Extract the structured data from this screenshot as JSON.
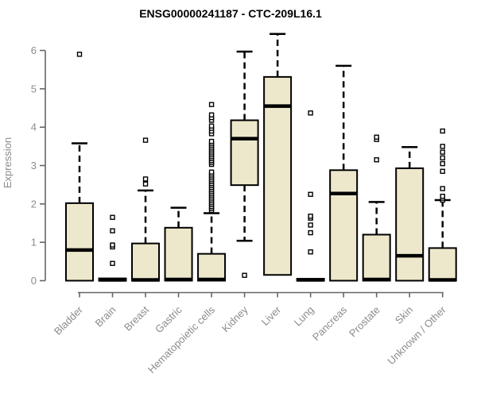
{
  "chart_data": {
    "type": "boxplot",
    "title": "ENSG00000241187 - CTC-209L16.1",
    "ylabel": "Expression",
    "xlabel": "",
    "ylim": [
      0,
      6
    ],
    "yticks": [
      0,
      1,
      2,
      3,
      4,
      5,
      6
    ],
    "grid": false,
    "legend": "none",
    "categories": [
      "Bladder",
      "Brain",
      "Breast",
      "Gastric",
      "Hematopoietic cells",
      "Kidney",
      "Liver",
      "Lung",
      "Pancreas",
      "Prostate",
      "Skin",
      "Unknown / Other"
    ],
    "groups": [
      {
        "category": "Bladder",
        "whisker_low": 0,
        "q1": 0,
        "median": 0.8,
        "q3": 2.02,
        "whisker_high": 3.58,
        "outliers": [
          5.9
        ]
      },
      {
        "category": "Brain",
        "whisker_low": 0,
        "q1": 0,
        "median": 0.02,
        "q3": 0.06,
        "whisker_high": 0.06,
        "outliers": [
          0.45,
          0.88,
          0.93,
          1.3,
          1.65
        ]
      },
      {
        "category": "Breast",
        "whisker_low": 0,
        "q1": 0,
        "median": 0.02,
        "q3": 0.97,
        "whisker_high": 2.35,
        "outliers": [
          2.52,
          2.65,
          3.66
        ]
      },
      {
        "category": "Gastric",
        "whisker_low": 0,
        "q1": 0,
        "median": 0.03,
        "q3": 1.38,
        "whisker_high": 1.9,
        "outliers": []
      },
      {
        "category": "Hematopoietic cells",
        "whisker_low": 0,
        "q1": 0,
        "median": 0.03,
        "q3": 0.7,
        "whisker_high": 1.76,
        "outliers": [
          1.83,
          1.88,
          1.93,
          1.98,
          2.03,
          2.08,
          2.13,
          2.18,
          2.23,
          2.28,
          2.33,
          2.38,
          2.43,
          2.48,
          2.53,
          2.58,
          2.63,
          2.68,
          2.73,
          2.78,
          2.83,
          3.03,
          3.08,
          3.13,
          3.18,
          3.23,
          3.28,
          3.33,
          3.38,
          3.43,
          3.48,
          3.53,
          3.58,
          3.63,
          3.83,
          3.9,
          3.97,
          4.03,
          4.18,
          4.25,
          4.32,
          4.59
        ]
      },
      {
        "category": "Kidney",
        "whisker_low": 1.04,
        "q1": 2.49,
        "median": 3.7,
        "q3": 4.18,
        "whisker_high": 5.97,
        "outliers": [
          0.14
        ]
      },
      {
        "category": "Liver",
        "whisker_low": 0.15,
        "q1": 0.15,
        "median": 4.55,
        "q3": 5.31,
        "whisker_high": 6.43,
        "outliers": []
      },
      {
        "category": "Lung",
        "whisker_low": 0,
        "q1": 0,
        "median": 0.02,
        "q3": 0.05,
        "whisker_high": 0.05,
        "outliers": [
          0.75,
          1.25,
          1.45,
          1.63,
          1.68,
          2.25,
          4.37
        ]
      },
      {
        "category": "Pancreas",
        "whisker_low": 0,
        "q1": 0,
        "median": 2.27,
        "q3": 2.88,
        "whisker_high": 5.6,
        "outliers": []
      },
      {
        "category": "Prostate",
        "whisker_low": 0,
        "q1": 0,
        "median": 0.03,
        "q3": 1.2,
        "whisker_high": 2.05,
        "outliers": [
          3.15,
          3.68,
          3.74
        ]
      },
      {
        "category": "Skin",
        "whisker_low": 0,
        "q1": 0,
        "median": 0.65,
        "q3": 2.93,
        "whisker_high": 3.48,
        "outliers": []
      },
      {
        "category": "Unknown / Other",
        "whisker_low": 0,
        "q1": 0,
        "median": 0.02,
        "q3": 0.85,
        "whisker_high": 2.1,
        "outliers": [
          2.1,
          2.15,
          2.2,
          2.4,
          2.85,
          3.05,
          3.2,
          3.35,
          3.5,
          3.9
        ]
      }
    ],
    "style": {
      "box_fill": "#EDE8CC",
      "box_border": "#000000",
      "median_color": "#000000",
      "whisker_color": "#000000",
      "outlier_stroke": "#000000",
      "outlier_fill": "#FFFFFF",
      "axis_color": "#666666",
      "tick_label_color": "#8C8C8C",
      "title_color": "#000000",
      "background": "#FFFFFF"
    }
  }
}
